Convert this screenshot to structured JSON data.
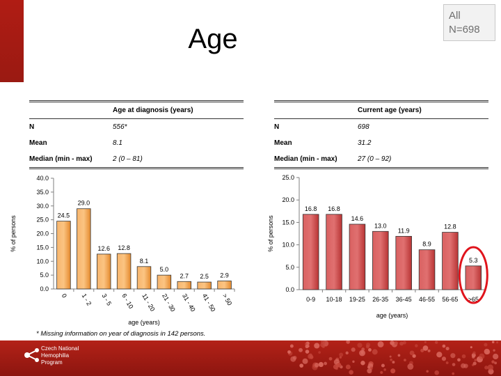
{
  "slide": {
    "title": "Age",
    "badge_line1": "All",
    "badge_line2": "N=698",
    "footnote": "* Missing information on year of diagnosis in 142 persons.",
    "logo_line1": "Czech National",
    "logo_line2": "Hemophilia",
    "logo_line3": "Program"
  },
  "tables": {
    "diagnosis": {
      "header": "Age at diagnosis (years)",
      "rows": [
        {
          "label": "N",
          "value": "556*"
        },
        {
          "label": "Mean",
          "value": "8.1"
        },
        {
          "label": "Median (min - max)",
          "value": "2 (0 – 81)"
        }
      ]
    },
    "current": {
      "header": "Current age (years)",
      "rows": [
        {
          "label": "N",
          "value": "698"
        },
        {
          "label": "Mean",
          "value": "31.2"
        },
        {
          "label": "Median (min - max)",
          "value": "27 (0 – 92)"
        }
      ]
    }
  },
  "chart_data": [
    {
      "type": "bar",
      "categories": [
        "0",
        "1 - 2",
        "3 - 5",
        "6 - 10",
        "11 - 20",
        "21 - 30",
        "31 - 40",
        "41 - 50",
        "> 50"
      ],
      "values": [
        24.5,
        29.0,
        12.6,
        12.8,
        8.1,
        5.0,
        2.7,
        2.5,
        2.9
      ],
      "value_labels": [
        "24.5",
        "29.0",
        "12.6",
        "12.8",
        "8.1",
        "5.0",
        "2.7",
        "2.5",
        "2.9"
      ],
      "xlabel": "age (years)",
      "ylabel": "% of persons",
      "ylim": [
        0,
        40
      ],
      "yticks": [
        "0.0",
        "5.0",
        "10.0",
        "15.0",
        "20.0",
        "25.0",
        "30.0",
        "35.0",
        "40.0"
      ],
      "bar_color": "#f5a04a",
      "rotated_tick_labels": true
    },
    {
      "type": "bar",
      "categories": [
        "0-9",
        "10-18",
        "19-25",
        "26-35",
        "36-45",
        "46-55",
        "56-65",
        ">65"
      ],
      "values": [
        16.8,
        16.8,
        14.6,
        13.0,
        11.9,
        8.9,
        12.8,
        5.3
      ],
      "value_labels": [
        "16.8",
        "16.8",
        "14.6",
        "13.0",
        "11.9",
        "8.9",
        "12.8",
        "5.3"
      ],
      "xlabel": "age (years)",
      "ylabel": "% of persons",
      "ylim": [
        0,
        25
      ],
      "yticks": [
        "0.0",
        "5.0",
        "10.0",
        "15.0",
        "20.0",
        "25.0"
      ],
      "bar_color": "#cf4b4b",
      "highlight_index": 7,
      "highlight_color": "#e0141c",
      "rotated_tick_labels": false
    }
  ]
}
